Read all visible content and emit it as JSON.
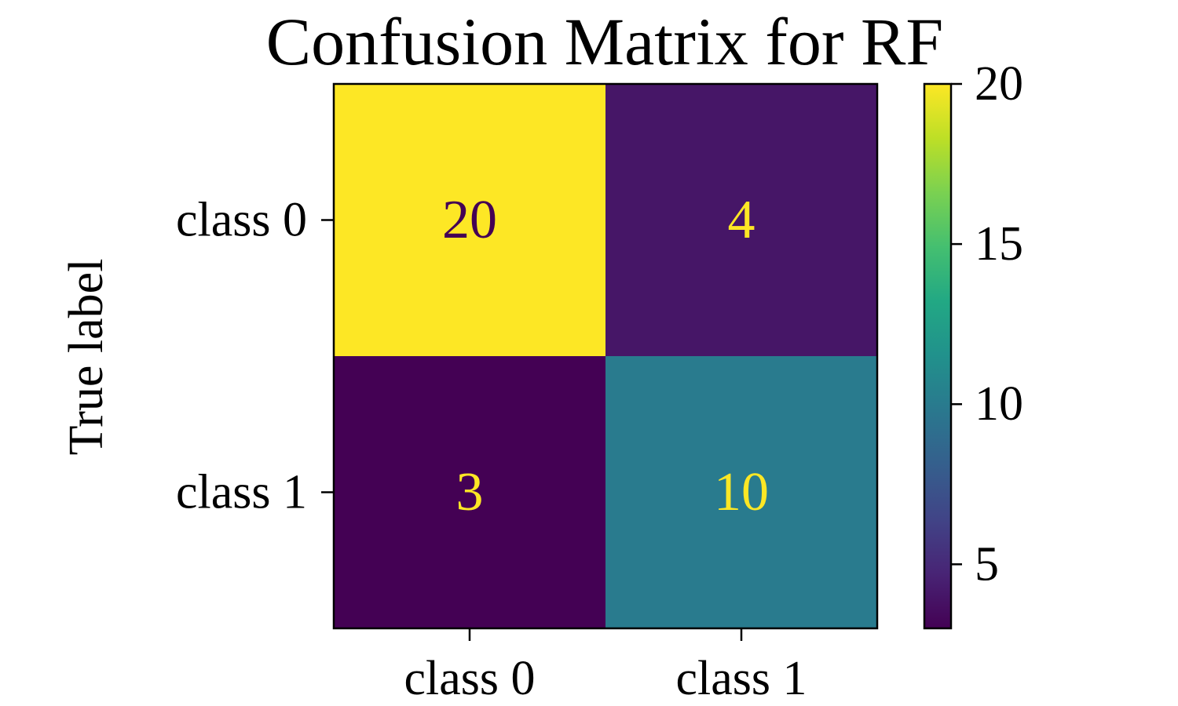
{
  "chart_data": {
    "type": "heatmap",
    "title": "Confusion Matrix for RF",
    "ylabel": "True label",
    "xlabel": "",
    "x_categories": [
      "class 0",
      "class 1"
    ],
    "y_categories": [
      "class 0",
      "class 1"
    ],
    "matrix": [
      [
        20,
        4
      ],
      [
        3,
        10
      ]
    ],
    "colormap": "viridis",
    "colorbar": {
      "range": [
        3,
        20
      ],
      "ticks": [
        5,
        10,
        15,
        20
      ],
      "tick_labels": [
        "5",
        "10",
        "15",
        "20"
      ]
    },
    "text_colors": {
      "on_light": "#440154",
      "on_dark": "#fde725"
    }
  }
}
